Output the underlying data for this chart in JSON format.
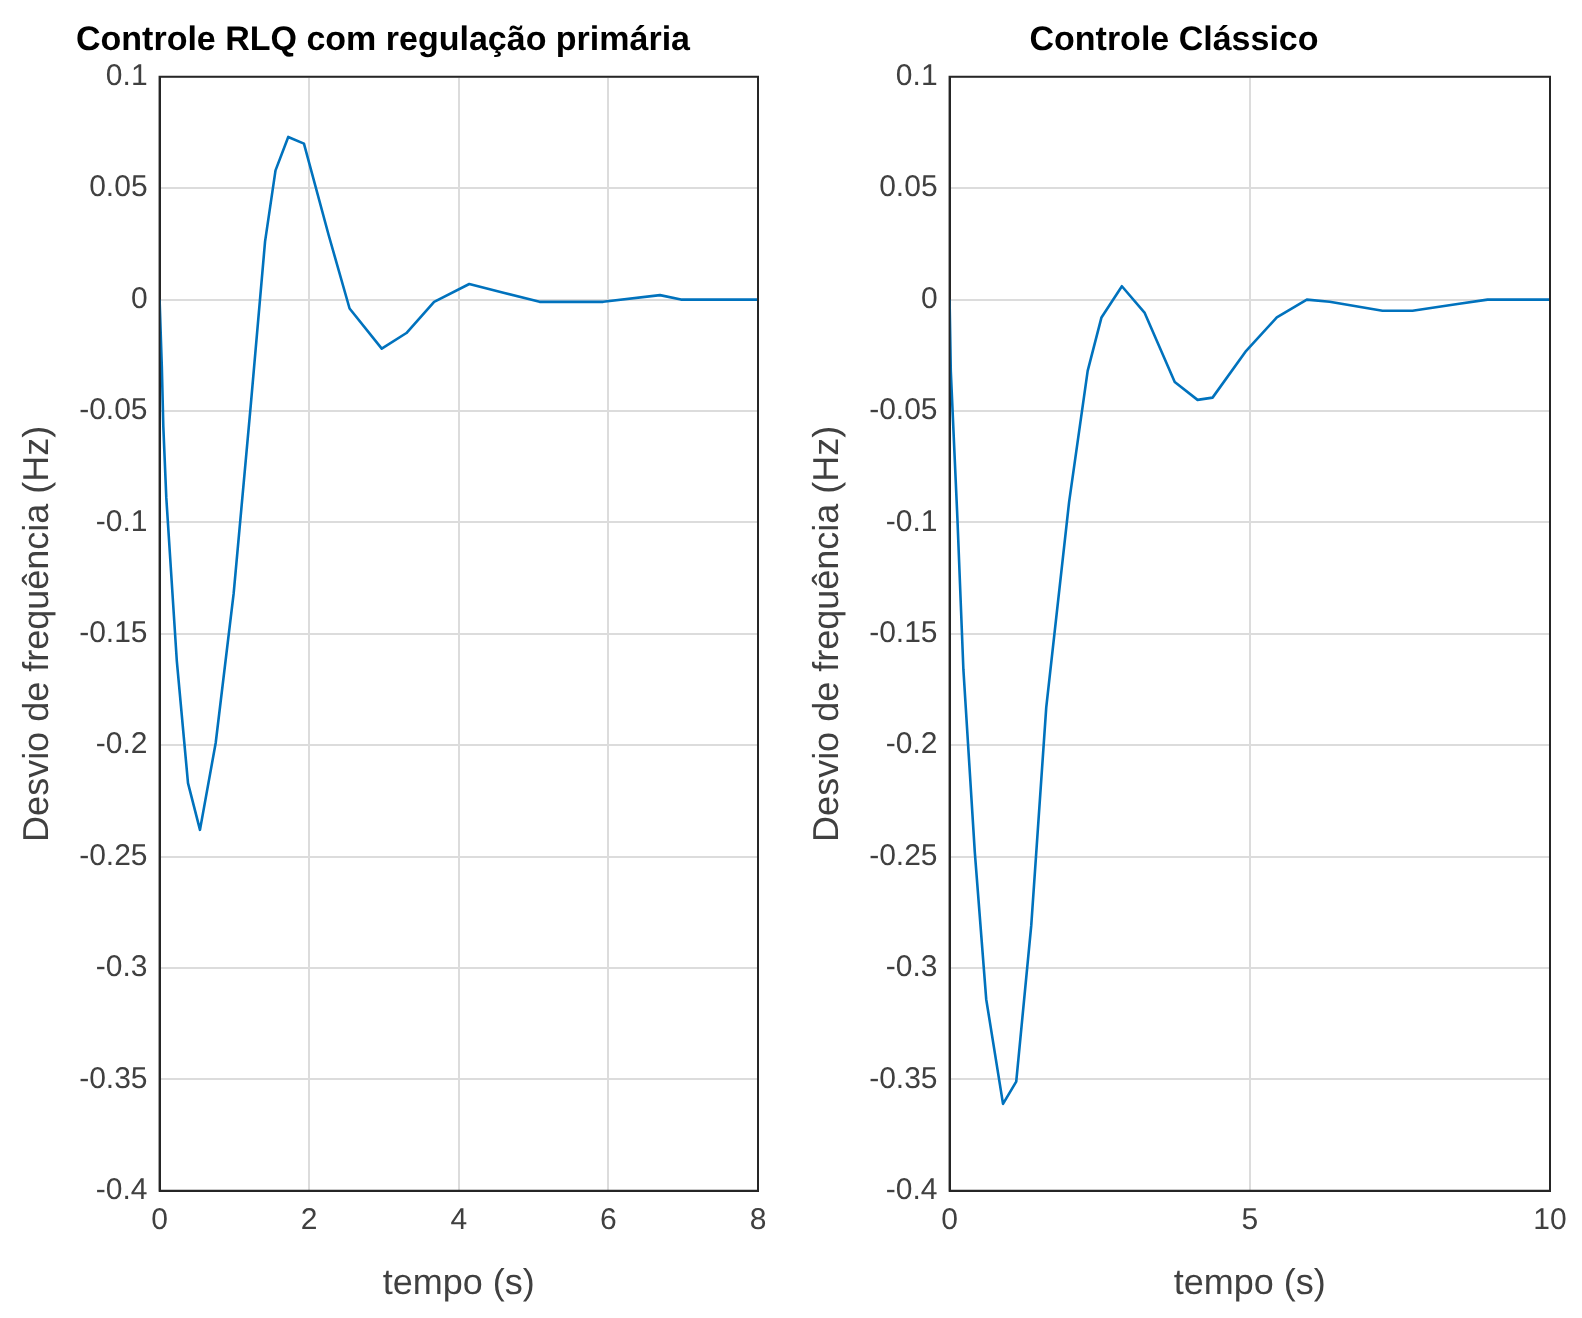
{
  "chart_data": [
    {
      "type": "line",
      "title": "Controle RLQ com regulação primária",
      "xlabel": "tempo (s)",
      "ylabel": "Desvio de frequência (Hz)",
      "color": "#0072bd",
      "grid": true,
      "marker": "none",
      "x": [
        0,
        0.03,
        0.05,
        0.09,
        0.23,
        0.38,
        0.54,
        0.75,
        0.99,
        1.22,
        1.41,
        1.55,
        1.72,
        1.93,
        2.26,
        2.54,
        2.97,
        3.3,
        3.67,
        4.14,
        4.61,
        5.08,
        5.93,
        6.69,
        6.97,
        8
      ],
      "values": [
        0,
        -0.03,
        -0.057,
        -0.089,
        -0.162,
        -0.217,
        -0.238,
        -0.199,
        -0.132,
        -0.047,
        0.026,
        0.058,
        0.073,
        0.07,
        0.029,
        -0.004,
        -0.022,
        -0.015,
        -0.001,
        0.007,
        0.003,
        -0.001,
        -0.001,
        0.002,
        0,
        0
      ],
      "xlim": [
        0,
        8
      ],
      "xticks": [
        0,
        2,
        4,
        6,
        8
      ],
      "ylim": [
        -0.4,
        0.1
      ],
      "yticks": [
        -0.4,
        -0.35,
        -0.3,
        -0.25,
        -0.2,
        -0.15,
        -0.1,
        -0.05,
        0,
        0.05,
        0.1
      ]
    },
    {
      "type": "line",
      "title": "Controle Clássico",
      "xlabel": "tempo (s)",
      "ylabel": "Desvio de frequência (Hz)",
      "color": "#0072bd",
      "grid": true,
      "marker": "none",
      "x": [
        0,
        0.02,
        0.13,
        0.23,
        0.42,
        0.61,
        0.89,
        1.11,
        1.36,
        1.61,
        1.99,
        2.3,
        2.53,
        2.87,
        3.25,
        3.75,
        4.13,
        4.38,
        4.94,
        5.45,
        5.95,
        6.33,
        7.21,
        7.71,
        8.46,
        8.96,
        10
      ],
      "values": [
        0,
        -0.032,
        -0.098,
        -0.166,
        -0.248,
        -0.314,
        -0.361,
        -0.351,
        -0.281,
        -0.183,
        -0.091,
        -0.032,
        -0.008,
        0.006,
        -0.006,
        -0.037,
        -0.045,
        -0.044,
        -0.023,
        -0.008,
        0,
        -0.001,
        -0.005,
        -0.005,
        -0.002,
        0,
        0
      ],
      "xlim": [
        0,
        10
      ],
      "xticks": [
        0,
        5,
        10
      ],
      "ylim": [
        -0.4,
        0.1
      ],
      "yticks": [
        -0.4,
        -0.35,
        -0.3,
        -0.25,
        -0.2,
        -0.15,
        -0.1,
        -0.05,
        0,
        0.05,
        0.1
      ]
    }
  ]
}
